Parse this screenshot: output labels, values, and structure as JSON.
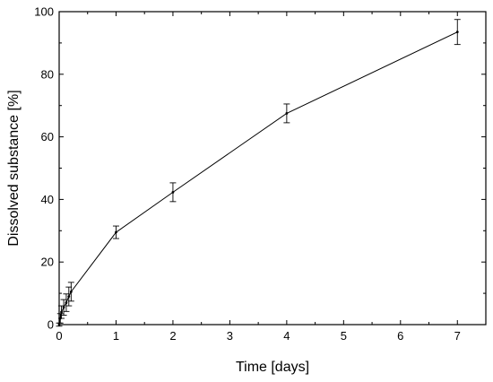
{
  "chart_data": {
    "type": "line",
    "xlabel": "Time [days]",
    "ylabel": "Dissolved substance [%]",
    "xlim": [
      0,
      7.5
    ],
    "ylim": [
      0,
      100
    ],
    "x_ticks": [
      0,
      1,
      2,
      3,
      4,
      5,
      6,
      7
    ],
    "y_ticks": [
      0,
      20,
      40,
      60,
      80,
      100
    ],
    "grid": false,
    "series": [
      {
        "color": "#000000",
        "points": [
          {
            "x": 0.0,
            "y": 0.0,
            "err": 0.5
          },
          {
            "x": 0.02,
            "y": 2.0,
            "err": 1.5
          },
          {
            "x": 0.04,
            "y": 4.0,
            "err": 2.0
          },
          {
            "x": 0.08,
            "y": 5.5,
            "err": 2.5
          },
          {
            "x": 0.125,
            "y": 7.0,
            "err": 2.8
          },
          {
            "x": 0.17,
            "y": 9.0,
            "err": 3.0
          },
          {
            "x": 0.21,
            "y": 10.5,
            "err": 3.0
          },
          {
            "x": 1.0,
            "y": 29.5,
            "err": 2.0
          },
          {
            "x": 2.0,
            "y": 42.3,
            "err": 3.0
          },
          {
            "x": 4.0,
            "y": 67.5,
            "err": 3.0
          },
          {
            "x": 7.0,
            "y": 93.5,
            "err": 4.0
          }
        ]
      }
    ]
  }
}
